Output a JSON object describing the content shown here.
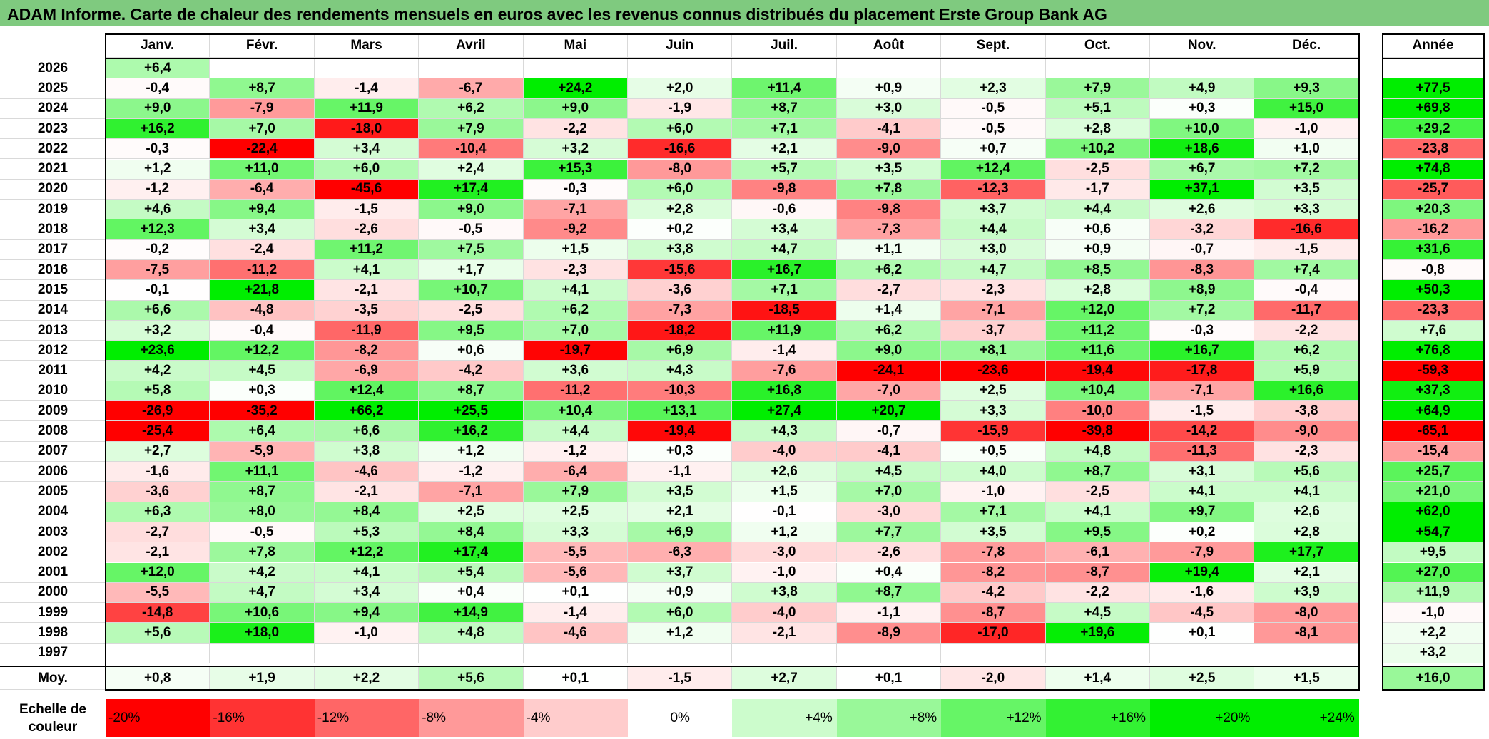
{
  "title": "ADAM Informe. Carte de chaleur des rendements mensuels en euros avec les revenus connus distribués du placement Erste Group Bank AG",
  "chart_data": {
    "type": "heatmap",
    "title": "ADAM Informe. Carte de chaleur des rendements mensuels en euros avec les revenus connus distribués du placement Erste Group Bank AG",
    "months": [
      "Janv.",
      "Févr.",
      "Mars",
      "Avril",
      "Mai",
      "Juin",
      "Juil.",
      "Août",
      "Sept.",
      "Oct.",
      "Nov.",
      "Déc."
    ],
    "year_header": "Année",
    "rows": [
      {
        "year": "2026",
        "values": [
          "+6,4",
          "",
          "",
          "",
          "",
          "",
          "",
          "",
          "",
          "",
          "",
          ""
        ],
        "annual": ""
      },
      {
        "year": "2025",
        "values": [
          "-0,4",
          "+8,7",
          "-1,4",
          "-6,7",
          "+24,2",
          "+2,0",
          "+11,4",
          "+0,9",
          "+2,3",
          "+7,9",
          "+4,9",
          "+9,3"
        ],
        "annual": "+77,5"
      },
      {
        "year": "2024",
        "values": [
          "+9,0",
          "-7,9",
          "+11,9",
          "+6,2",
          "+9,0",
          "-1,9",
          "+8,7",
          "+3,0",
          "-0,5",
          "+5,1",
          "+0,3",
          "+15,0"
        ],
        "annual": "+69,8"
      },
      {
        "year": "2023",
        "values": [
          "+16,2",
          "+7,0",
          "-18,0",
          "+7,9",
          "-2,2",
          "+6,0",
          "+7,1",
          "-4,1",
          "-0,5",
          "+2,8",
          "+10,0",
          "-1,0"
        ],
        "annual": "+29,2"
      },
      {
        "year": "2022",
        "values": [
          "-0,3",
          "-22,4",
          "+3,4",
          "-10,4",
          "+3,2",
          "-16,6",
          "+2,1",
          "-9,0",
          "+0,7",
          "+10,2",
          "+18,6",
          "+1,0"
        ],
        "annual": "-23,8"
      },
      {
        "year": "2021",
        "values": [
          "+1,2",
          "+11,0",
          "+6,0",
          "+2,4",
          "+15,3",
          "-8,0",
          "+5,7",
          "+3,5",
          "+12,4",
          "-2,5",
          "+6,7",
          "+7,2"
        ],
        "annual": "+74,8"
      },
      {
        "year": "2020",
        "values": [
          "-1,2",
          "-6,4",
          "-45,6",
          "+17,4",
          "-0,3",
          "+6,0",
          "-9,8",
          "+7,8",
          "-12,3",
          "-1,7",
          "+37,1",
          "+3,5"
        ],
        "annual": "-25,7"
      },
      {
        "year": "2019",
        "values": [
          "+4,6",
          "+9,4",
          "-1,5",
          "+9,0",
          "-7,1",
          "+2,8",
          "-0,6",
          "-9,8",
          "+3,7",
          "+4,4",
          "+2,6",
          "+3,3"
        ],
        "annual": "+20,3"
      },
      {
        "year": "2018",
        "values": [
          "+12,3",
          "+3,4",
          "-2,6",
          "-0,5",
          "-9,2",
          "+0,2",
          "+3,4",
          "-7,3",
          "+4,4",
          "+0,6",
          "-3,2",
          "-16,6"
        ],
        "annual": "-16,2"
      },
      {
        "year": "2017",
        "values": [
          "-0,2",
          "-2,4",
          "+11,2",
          "+7,5",
          "+1,5",
          "+3,8",
          "+4,7",
          "+1,1",
          "+3,0",
          "+0,9",
          "-0,7",
          "-1,5"
        ],
        "annual": "+31,6"
      },
      {
        "year": "2016",
        "values": [
          "-7,5",
          "-11,2",
          "+4,1",
          "+1,7",
          "-2,3",
          "-15,6",
          "+16,7",
          "+6,2",
          "+4,7",
          "+8,5",
          "-8,3",
          "+7,4"
        ],
        "annual": "-0,8"
      },
      {
        "year": "2015",
        "values": [
          "-0,1",
          "+21,8",
          "-2,1",
          "+10,7",
          "+4,1",
          "-3,6",
          "+7,1",
          "-2,7",
          "-2,3",
          "+2,8",
          "+8,9",
          "-0,4"
        ],
        "annual": "+50,3"
      },
      {
        "year": "2014",
        "values": [
          "+6,6",
          "-4,8",
          "-3,5",
          "-2,5",
          "+6,2",
          "-7,3",
          "-18,5",
          "+1,4",
          "-7,1",
          "+12,0",
          "+7,2",
          "-11,7"
        ],
        "annual": "-23,3"
      },
      {
        "year": "2013",
        "values": [
          "+3,2",
          "-0,4",
          "-11,9",
          "+9,5",
          "+7,0",
          "-18,2",
          "+11,9",
          "+6,2",
          "-3,7",
          "+11,2",
          "-0,3",
          "-2,2"
        ],
        "annual": "+7,6"
      },
      {
        "year": "2012",
        "values": [
          "+23,6",
          "+12,2",
          "-8,2",
          "+0,6",
          "-19,7",
          "+6,9",
          "-1,4",
          "+9,0",
          "+8,1",
          "+11,6",
          "+16,7",
          "+6,2"
        ],
        "annual": "+76,8"
      },
      {
        "year": "2011",
        "values": [
          "+4,2",
          "+4,5",
          "-6,9",
          "-4,2",
          "+3,6",
          "+4,3",
          "-7,6",
          "-24,1",
          "-23,6",
          "-19,4",
          "-17,8",
          "+5,9"
        ],
        "annual": "-59,3"
      },
      {
        "year": "2010",
        "values": [
          "+5,8",
          "+0,3",
          "+12,4",
          "+8,7",
          "-11,2",
          "-10,3",
          "+16,8",
          "-7,0",
          "+2,5",
          "+10,4",
          "-7,1",
          "+16,6"
        ],
        "annual": "+37,3"
      },
      {
        "year": "2009",
        "values": [
          "-26,9",
          "-35,2",
          "+66,2",
          "+25,5",
          "+10,4",
          "+13,1",
          "+27,4",
          "+20,7",
          "+3,3",
          "-10,0",
          "-1,5",
          "-3,8"
        ],
        "annual": "+64,9"
      },
      {
        "year": "2008",
        "values": [
          "-25,4",
          "+6,4",
          "+6,6",
          "+16,2",
          "+4,4",
          "-19,4",
          "+4,3",
          "-0,7",
          "-15,9",
          "-39,8",
          "-14,2",
          "-9,0"
        ],
        "annual": "-65,1"
      },
      {
        "year": "2007",
        "values": [
          "+2,7",
          "-5,9",
          "+3,8",
          "+1,2",
          "-1,2",
          "+0,3",
          "-4,0",
          "-4,1",
          "+0,5",
          "+4,8",
          "-11,3",
          "-2,3"
        ],
        "annual": "-15,4"
      },
      {
        "year": "2006",
        "values": [
          "-1,6",
          "+11,1",
          "-4,6",
          "-1,2",
          "-6,4",
          "-1,1",
          "+2,6",
          "+4,5",
          "+4,0",
          "+8,7",
          "+3,1",
          "+5,6"
        ],
        "annual": "+25,7"
      },
      {
        "year": "2005",
        "values": [
          "-3,6",
          "+8,7",
          "-2,1",
          "-7,1",
          "+7,9",
          "+3,5",
          "+1,5",
          "+7,0",
          "-1,0",
          "-2,5",
          "+4,1",
          "+4,1"
        ],
        "annual": "+21,0"
      },
      {
        "year": "2004",
        "values": [
          "+6,3",
          "+8,0",
          "+8,4",
          "+2,5",
          "+2,5",
          "+2,1",
          "-0,1",
          "-3,0",
          "+7,1",
          "+4,1",
          "+9,7",
          "+2,6"
        ],
        "annual": "+62,0"
      },
      {
        "year": "2003",
        "values": [
          "-2,7",
          "-0,5",
          "+5,3",
          "+8,4",
          "+3,3",
          "+6,9",
          "+1,2",
          "+7,7",
          "+3,5",
          "+9,5",
          "+0,2",
          "+2,8"
        ],
        "annual": "+54,7"
      },
      {
        "year": "2002",
        "values": [
          "-2,1",
          "+7,8",
          "+12,2",
          "+17,4",
          "-5,5",
          "-6,3",
          "-3,0",
          "-2,6",
          "-7,8",
          "-6,1",
          "-7,9",
          "+17,7"
        ],
        "annual": "+9,5"
      },
      {
        "year": "2001",
        "values": [
          "+12,0",
          "+4,2",
          "+4,1",
          "+5,4",
          "-5,6",
          "+3,7",
          "-1,0",
          "+0,4",
          "-8,2",
          "-8,7",
          "+19,4",
          "+2,1"
        ],
        "annual": "+27,0"
      },
      {
        "year": "2000",
        "values": [
          "-5,5",
          "+4,7",
          "+3,4",
          "+0,4",
          "+0,1",
          "+0,9",
          "+3,8",
          "+8,7",
          "-4,2",
          "-2,2",
          "-1,6",
          "+3,9"
        ],
        "annual": "+11,9"
      },
      {
        "year": "1999",
        "values": [
          "-14,8",
          "+10,6",
          "+9,4",
          "+14,9",
          "-1,4",
          "+6,0",
          "-4,0",
          "-1,1",
          "-8,7",
          "+4,5",
          "-4,5",
          "-8,0"
        ],
        "annual": "-1,0"
      },
      {
        "year": "1998",
        "values": [
          "+5,6",
          "+18,0",
          "-1,0",
          "+4,8",
          "-4,6",
          "+1,2",
          "-2,1",
          "-8,9",
          "-17,0",
          "+19,6",
          "+0,1",
          "-8,1"
        ],
        "annual": "+2,2"
      },
      {
        "year": "1997",
        "values": [
          "",
          "",
          "",
          "",
          "",
          "",
          "",
          "",
          "",
          "",
          "",
          ""
        ],
        "annual": "+3,2"
      }
    ],
    "average": {
      "label": "Moy.",
      "values": [
        "+0,8",
        "+1,9",
        "+2,2",
        "+5,6",
        "+0,1",
        "-1,5",
        "+2,7",
        "+0,1",
        "-2,0",
        "+1,4",
        "+2,5",
        "+1,5"
      ],
      "annual": "+16,0"
    },
    "scale": {
      "label_line1": "Echelle de",
      "label_line2": "couleur",
      "steps": [
        "-20%",
        "-16%",
        "-12%",
        "-8%",
        "-4%",
        "0%",
        "+4%",
        "+8%",
        "+12%",
        "+16%",
        "+20%",
        "+24%"
      ]
    },
    "colors": {
      "negative": "#ff0000",
      "neutral": "#ffffff",
      "positive": "#00ee00",
      "title_bar": "#7fca7f"
    }
  }
}
